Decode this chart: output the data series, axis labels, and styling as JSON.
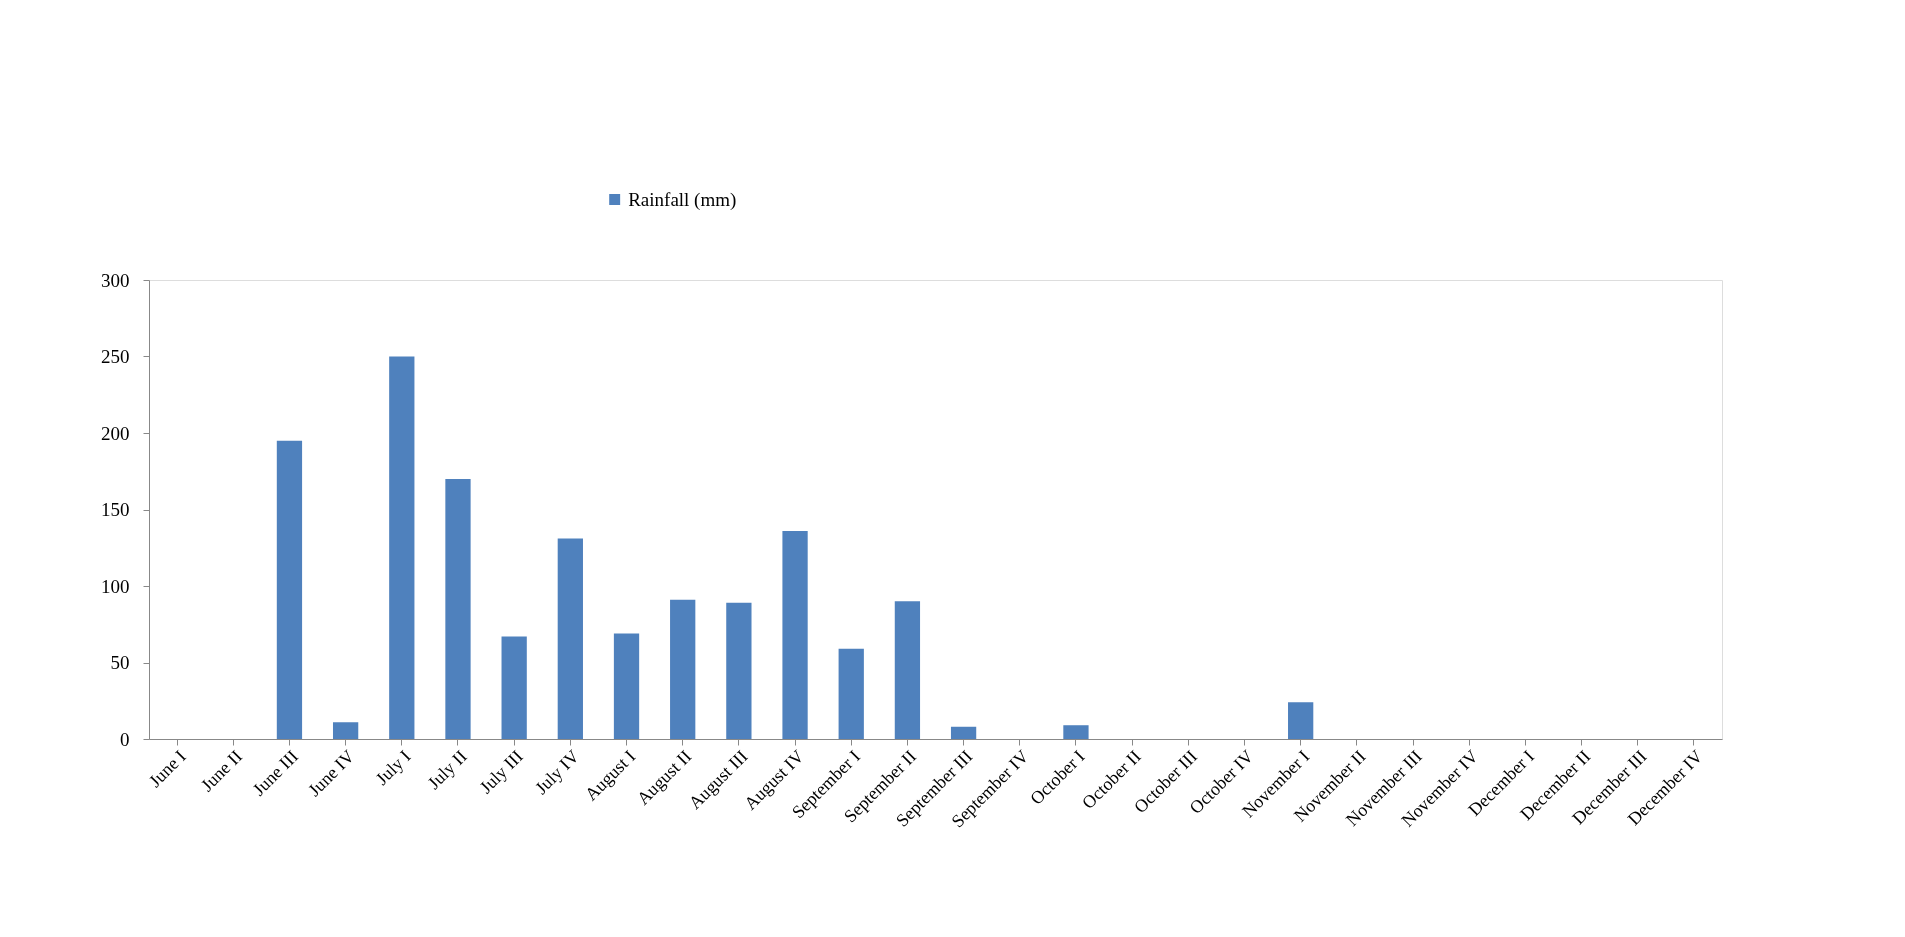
{
  "chart_data": {
    "type": "bar",
    "categories": [
      "June I",
      "June II",
      "June III",
      "June IV",
      "July I",
      "July II",
      "July III",
      "July IV",
      "August I",
      "August II",
      "August III",
      "August IV",
      "September I",
      "September II",
      "September III",
      "September IV",
      "October I",
      "October II",
      "October III",
      "October IV",
      "November I",
      "November II",
      "November III",
      "November IV",
      "December I",
      "December II",
      "December III",
      "December IV"
    ],
    "series": [
      {
        "name": "Rainfall (mm)",
        "color": "#4f81bd",
        "values": [
          0,
          0,
          195,
          11,
          250,
          170,
          67,
          131,
          69,
          91,
          89,
          136,
          59,
          90,
          8,
          0,
          9,
          0,
          0,
          0,
          24,
          0,
          0,
          0,
          0,
          0,
          0,
          0
        ]
      }
    ],
    "ylim": [
      0,
      300
    ],
    "yticks": [
      0,
      50,
      100,
      150,
      200,
      250,
      300
    ],
    "grid": false,
    "legend": "top"
  }
}
